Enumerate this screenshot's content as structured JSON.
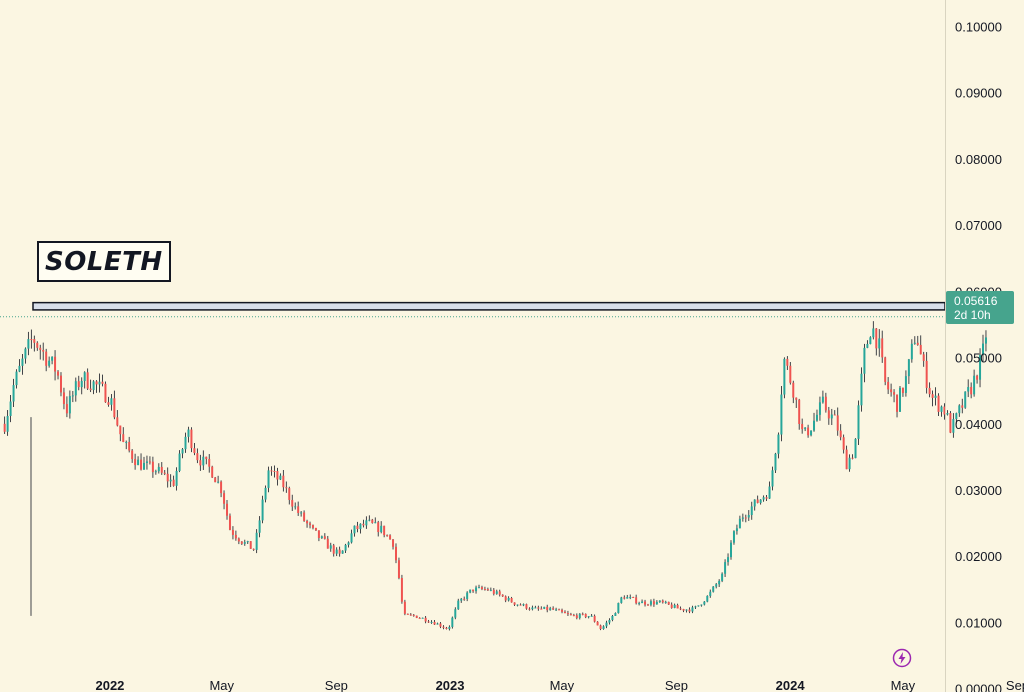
{
  "chart_data": {
    "type": "candlestick",
    "title": "SOLETH",
    "y_axis": {
      "position": "right",
      "range": [
        -0.0005,
        0.104
      ],
      "ticks": [
        "0.10000",
        "0.09000",
        "0.08000",
        "0.07000",
        "0.06000",
        "0.05000",
        "0.04000",
        "0.03000",
        "0.02000",
        "0.01000",
        "0.00000"
      ]
    },
    "x_axis": {
      "range": [
        "2021-09-05",
        "2024-09-08"
      ],
      "ticks": [
        {
          "label": "2022",
          "date": "2022-01-01",
          "bold": true
        },
        {
          "label": "May",
          "date": "2022-05-01",
          "bold": false
        },
        {
          "label": "Sep",
          "date": "2022-09-01",
          "bold": false
        },
        {
          "label": "2023",
          "date": "2023-01-01",
          "bold": true
        },
        {
          "label": "May",
          "date": "2023-05-01",
          "bold": false
        },
        {
          "label": "Sep",
          "date": "2023-09-01",
          "bold": false
        },
        {
          "label": "2024",
          "date": "2024-01-01",
          "bold": true
        },
        {
          "label": "May",
          "date": "2024-05-01",
          "bold": false
        },
        {
          "label": "Sep",
          "date": "2024-09-01",
          "bold": false
        }
      ]
    },
    "resistance_zone": {
      "low": 0.0572,
      "high": 0.0583
    },
    "current_price": {
      "value": 0.05616,
      "label": "0.05616",
      "countdown": "2d 10h"
    },
    "up_color": "#26a69a",
    "down_color": "#ef5350",
    "price_path": [
      [
        "2021-09-10",
        0.04
      ],
      [
        "2021-09-20",
        0.046
      ],
      [
        "2021-10-01",
        0.05
      ],
      [
        "2021-10-10",
        0.053
      ],
      [
        "2021-10-25",
        0.05
      ],
      [
        "2021-11-05",
        0.048
      ],
      [
        "2021-11-15",
        0.042
      ],
      [
        "2021-12-01",
        0.047
      ],
      [
        "2021-12-15",
        0.046
      ],
      [
        "2022-01-01",
        0.044
      ],
      [
        "2022-01-15",
        0.037
      ],
      [
        "2022-02-01",
        0.034
      ],
      [
        "2022-02-20",
        0.033
      ],
      [
        "2022-03-10",
        0.031
      ],
      [
        "2022-03-25",
        0.039
      ],
      [
        "2022-04-05",
        0.035
      ],
      [
        "2022-04-20",
        0.033
      ],
      [
        "2022-05-01",
        0.03
      ],
      [
        "2022-05-10",
        0.024
      ],
      [
        "2022-05-25",
        0.022
      ],
      [
        "2022-06-05",
        0.021
      ],
      [
        "2022-06-20",
        0.033
      ],
      [
        "2022-07-05",
        0.031
      ],
      [
        "2022-07-20",
        0.027
      ],
      [
        "2022-08-05",
        0.024
      ],
      [
        "2022-08-20",
        0.022
      ],
      [
        "2022-09-05",
        0.02
      ],
      [
        "2022-09-20",
        0.024
      ],
      [
        "2022-10-05",
        0.025
      ],
      [
        "2022-10-20",
        0.024
      ],
      [
        "2022-11-01",
        0.022
      ],
      [
        "2022-11-08",
        0.016
      ],
      [
        "2022-11-12",
        0.011
      ],
      [
        "2022-11-25",
        0.011
      ],
      [
        "2022-12-15",
        0.01
      ],
      [
        "2022-12-30",
        0.009
      ],
      [
        "2023-01-10",
        0.013
      ],
      [
        "2023-01-25",
        0.015
      ],
      [
        "2023-02-10",
        0.015
      ],
      [
        "2023-02-25",
        0.014
      ],
      [
        "2023-03-10",
        0.013
      ],
      [
        "2023-04-01",
        0.012
      ],
      [
        "2023-04-20",
        0.012
      ],
      [
        "2023-05-10",
        0.011
      ],
      [
        "2023-06-01",
        0.011
      ],
      [
        "2023-06-12",
        0.009
      ],
      [
        "2023-06-25",
        0.011
      ],
      [
        "2023-07-05",
        0.014
      ],
      [
        "2023-07-25",
        0.013
      ],
      [
        "2023-08-15",
        0.013
      ],
      [
        "2023-09-05",
        0.012
      ],
      [
        "2023-09-20",
        0.012
      ],
      [
        "2023-10-05",
        0.014
      ],
      [
        "2023-10-20",
        0.017
      ],
      [
        "2023-11-01",
        0.023
      ],
      [
        "2023-11-10",
        0.026
      ],
      [
        "2023-11-25",
        0.028
      ],
      [
        "2023-12-10",
        0.03
      ],
      [
        "2023-12-20",
        0.04
      ],
      [
        "2023-12-25",
        0.05
      ],
      [
        "2024-01-05",
        0.045
      ],
      [
        "2024-01-15",
        0.038
      ],
      [
        "2024-01-25",
        0.04
      ],
      [
        "2024-02-05",
        0.043
      ],
      [
        "2024-02-20",
        0.04
      ],
      [
        "2024-03-01",
        0.034
      ],
      [
        "2024-03-10",
        0.036
      ],
      [
        "2024-03-20",
        0.05
      ],
      [
        "2024-03-28",
        0.055
      ],
      [
        "2024-04-05",
        0.052
      ],
      [
        "2024-04-12",
        0.046
      ],
      [
        "2024-04-25",
        0.043
      ],
      [
        "2024-05-05",
        0.047
      ],
      [
        "2024-05-15",
        0.054
      ],
      [
        "2024-05-22",
        0.049
      ],
      [
        "2024-06-01",
        0.044
      ],
      [
        "2024-06-15",
        0.042
      ],
      [
        "2024-06-22",
        0.039
      ],
      [
        "2024-07-01",
        0.042
      ],
      [
        "2024-07-15",
        0.046
      ],
      [
        "2024-07-25",
        0.05
      ],
      [
        "2024-08-01",
        0.056
      ]
    ]
  }
}
